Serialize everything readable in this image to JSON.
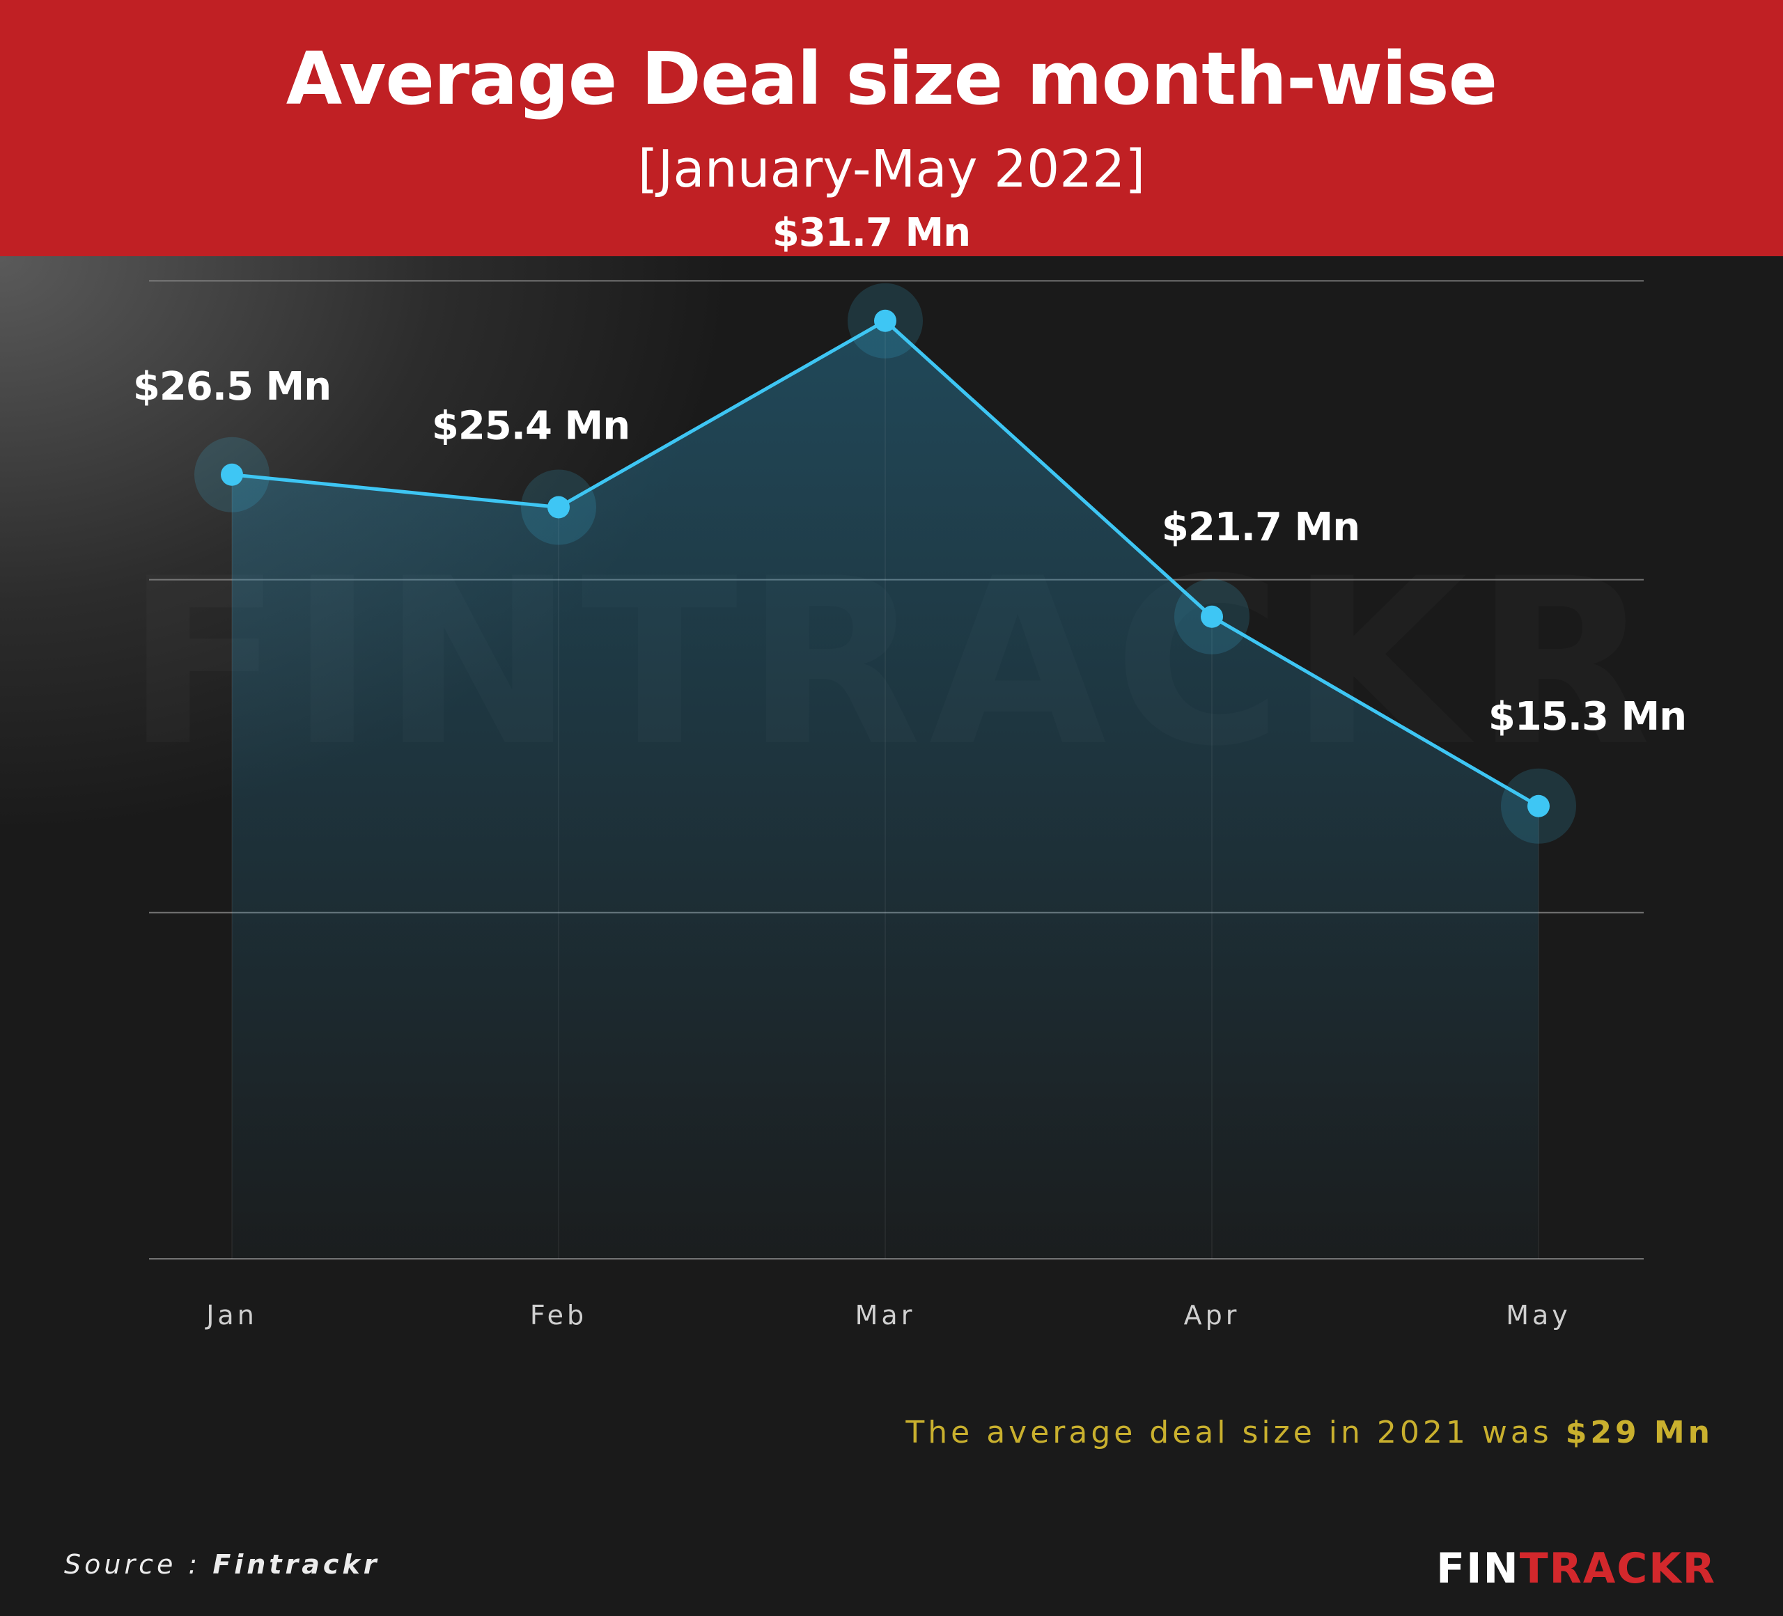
{
  "header": {
    "title": "Average Deal size month-wise",
    "subtitle": "[January-May 2022]"
  },
  "chart_data": {
    "type": "area",
    "categories": [
      "Jan",
      "Feb",
      "Mar",
      "Apr",
      "May"
    ],
    "values": [
      26.5,
      25.4,
      31.7,
      21.7,
      15.3
    ],
    "labels": [
      "$26.5 Mn",
      "$25.4 Mn",
      "$31.7 Mn",
      "$21.7 Mn",
      "$15.3 Mn"
    ],
    "title": "Average Deal size month-wise",
    "subtitle": "[January-May 2022]",
    "ylim": [
      0,
      35
    ],
    "grid": true,
    "colors": {
      "line": "#3ec6f4",
      "area": "#2a88b0"
    }
  },
  "note": {
    "text": "The average deal size in 2021 was",
    "value": "$29 Mn"
  },
  "source": {
    "label": "Source :",
    "name": "Fintrackr"
  },
  "logo": {
    "part1": "FIN",
    "part2": "TRACKR"
  },
  "watermark": "FINTRACKR",
  "colors": {
    "header": "#c02024",
    "note": "#c9b02e",
    "brand_red": "#d3282c"
  }
}
